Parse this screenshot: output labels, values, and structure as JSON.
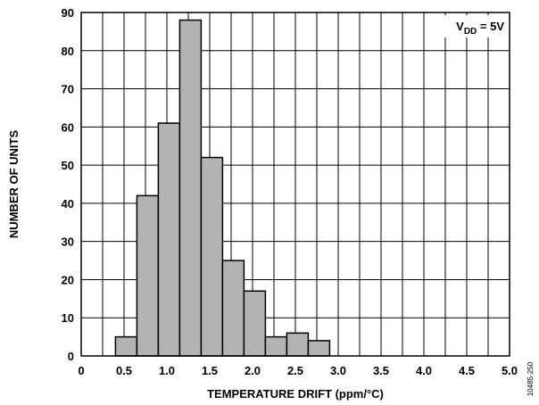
{
  "chart_data": {
    "type": "bar",
    "bin_edges": [
      0.0,
      0.25,
      0.5,
      0.75,
      1.0,
      1.25,
      1.5,
      1.75,
      2.0,
      2.25,
      2.5,
      2.75,
      3.0,
      3.25,
      3.5,
      3.75,
      4.0,
      4.25,
      4.5,
      4.75,
      5.0
    ],
    "bins": [
      {
        "from": 0.4,
        "to": 0.65,
        "value": 5
      },
      {
        "from": 0.65,
        "to": 0.9,
        "value": 42
      },
      {
        "from": 0.9,
        "to": 1.15,
        "value": 61
      },
      {
        "from": 1.15,
        "to": 1.4,
        "value": 88
      },
      {
        "from": 1.4,
        "to": 1.65,
        "value": 52
      },
      {
        "from": 1.65,
        "to": 1.9,
        "value": 25
      },
      {
        "from": 1.9,
        "to": 2.15,
        "value": 17
      },
      {
        "from": 2.15,
        "to": 2.4,
        "value": 5
      },
      {
        "from": 2.4,
        "to": 2.65,
        "value": 6
      },
      {
        "from": 2.65,
        "to": 2.9,
        "value": 4
      }
    ],
    "xlabel": "TEMPERATURE DRIFT (ppm/°C)",
    "ylabel": "NUMBER OF UNITS",
    "xlim": [
      0,
      5
    ],
    "ylim": [
      0,
      90
    ],
    "x_ticks": [
      "0",
      "0.5",
      "1.0",
      "1.5",
      "2.0",
      "2.5",
      "3.0",
      "3.5",
      "4.0",
      "4.5",
      "5.0"
    ],
    "y_ticks": [
      "0",
      "10",
      "20",
      "30",
      "40",
      "50",
      "60",
      "70",
      "80",
      "90"
    ],
    "grid": true,
    "annotation": {
      "main": "V",
      "sub": "DD",
      "rest": " = 5V",
      "position": "top-right"
    },
    "figure_code": "10485-250",
    "colors": {
      "bar_fill": "#b3b3b3",
      "bar_stroke": "#000000",
      "grid": "#000000"
    }
  }
}
